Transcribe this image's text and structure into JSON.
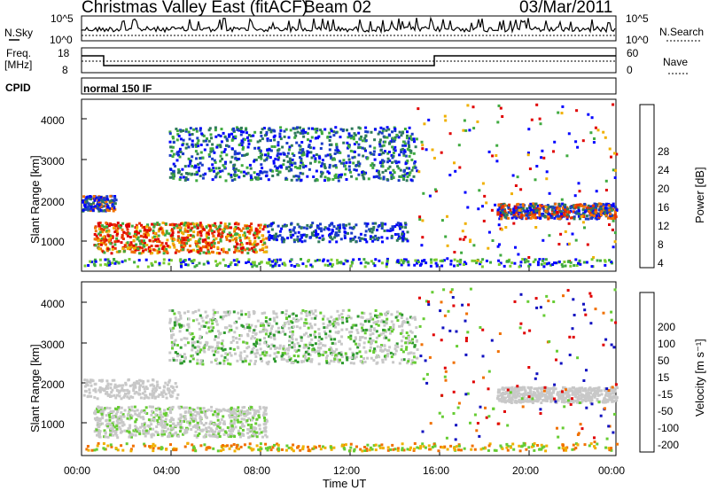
{
  "header": {
    "title": "Christmas Valley East (fitACF)",
    "beam": "Beam 02",
    "date": "03/Mar/2011"
  },
  "top_panels": {
    "nsky_label": "N.Sky",
    "nsearch_label": "N.Search",
    "ylab_nsky": [
      "10^5",
      "10^0"
    ],
    "ylab_nsearch": [
      "10^5",
      "10^0"
    ],
    "freq_label_1": "Freq.",
    "freq_label_2": "[MHz]",
    "freq_ticks": [
      "18",
      "8"
    ],
    "nave_label": "Nave",
    "nave_ticks": [
      "60",
      "0"
    ],
    "cpid_label": "CPID",
    "cpid_value": "normal 150 IF"
  },
  "chart_data": [
    {
      "type": "heatmap",
      "name": "power",
      "ylabel": "Slant Range [km]",
      "yticks": [
        "4000",
        "3000",
        "2000",
        "1000"
      ],
      "colorbar_label": "Power [dB]",
      "colorbar_ticks": [
        "28",
        "24",
        "20",
        "16",
        "12",
        "8",
        "4"
      ],
      "colors": [
        "#0000ff",
        "#1a3cc8",
        "#2f7a5a",
        "#3faa3f",
        "#7acc30",
        "#dddd00",
        "#f0b000",
        "#f07000",
        "#e83000",
        "#e00000"
      ]
    },
    {
      "type": "heatmap",
      "name": "velocity",
      "ylabel": "Slant Range [km]",
      "yticks": [
        "4000",
        "3000",
        "2000",
        "1000"
      ],
      "colorbar_label": "Velocity [m s⁻¹]",
      "colorbar_ticks": [
        "200",
        "100",
        "50",
        "15",
        "-15",
        "-50",
        "-100",
        "-200"
      ],
      "colors": [
        "#1010c0",
        "#1a5a50",
        "#2e9a2e",
        "#66cc33",
        "#c8c8c8",
        "#f0b000",
        "#f07000",
        "#e83000",
        "#e00000"
      ]
    }
  ],
  "x_axis": {
    "ticks": [
      "00:00",
      "04:00",
      "08:00",
      "12:00",
      "16:00",
      "20:00",
      "00:00"
    ],
    "label": "Time UT"
  }
}
